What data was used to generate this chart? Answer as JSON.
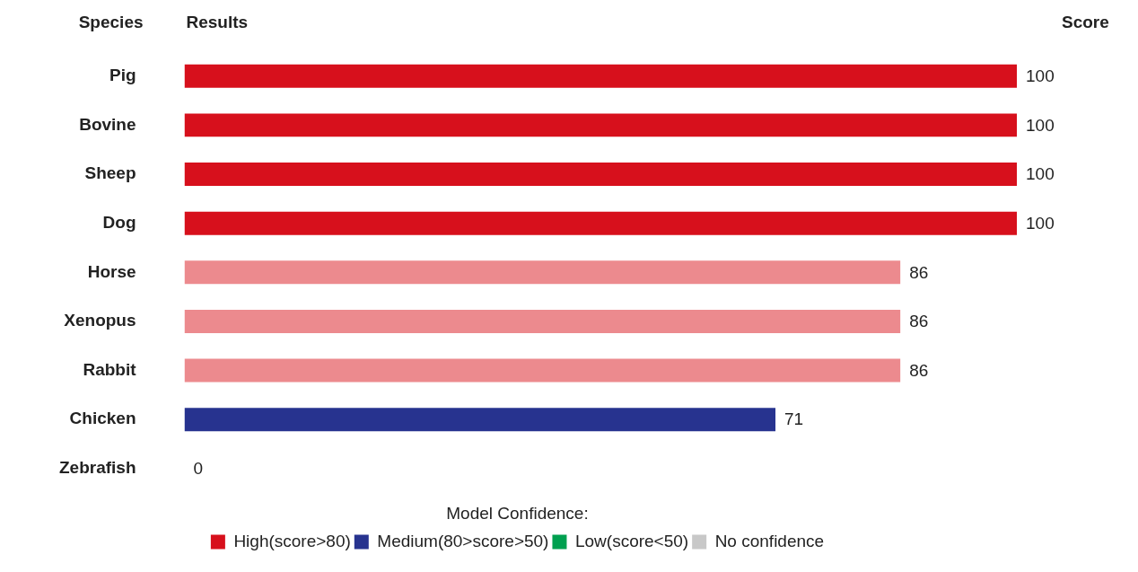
{
  "chart_data": {
    "type": "bar",
    "orientation": "horizontal",
    "stacked": true,
    "ylabel": "Species",
    "xlabel": "Results",
    "annotations": [
      "Score"
    ],
    "legend_title": "Model Confidence:",
    "legend": "bottom",
    "data_labels": true,
    "tick_labels": "y",
    "xlim": [
      0,
      100
    ],
    "categories": [
      "Pig",
      "Bovine",
      "Sheep",
      "Dog",
      "Horse",
      "Xenopus",
      "Rabbit",
      "Chicken",
      "Zebrafish"
    ],
    "series": [
      {
        "name": "High(score>80)",
        "color": "#d7101c",
        "colors": [
          "#d7101c",
          "#d7101c",
          "#d7101c",
          "#d7101c",
          "#ec8a8e",
          "#ec8a8e",
          "#ec8a8e",
          null,
          null
        ],
        "values": [
          100,
          100,
          100,
          100,
          86,
          86,
          86,
          null,
          null
        ]
      },
      {
        "name": "Medium(80>score>50)",
        "color": "#27338f",
        "values": [
          null,
          null,
          null,
          null,
          null,
          null,
          null,
          71,
          null
        ]
      },
      {
        "name": "Low(score<50)",
        "color": "#00a050",
        "values": [
          null,
          null,
          null,
          null,
          null,
          null,
          null,
          null,
          null
        ]
      },
      {
        "name": "No confidence",
        "color": "#c8c8c8",
        "values": [
          null,
          null,
          null,
          null,
          null,
          null,
          null,
          null,
          0
        ]
      }
    ]
  }
}
